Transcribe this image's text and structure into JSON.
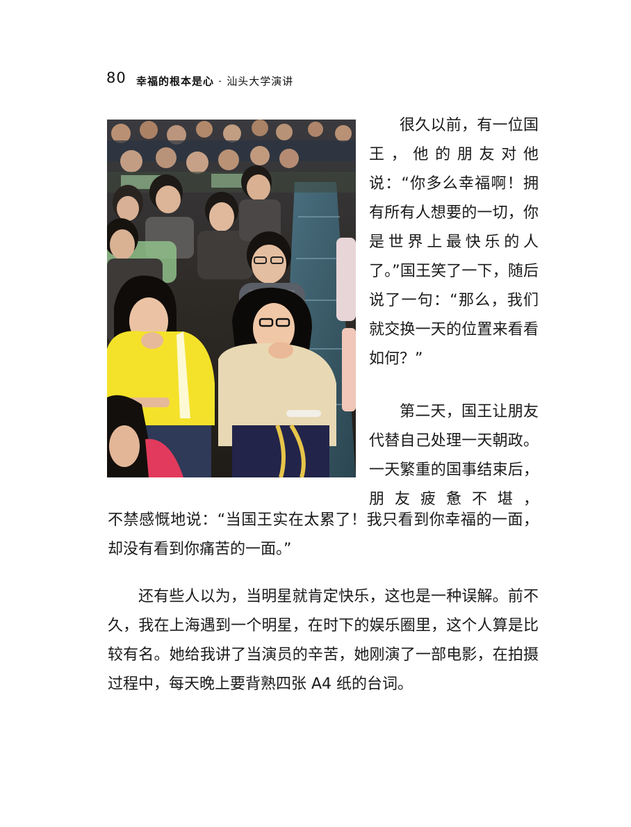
{
  "header": {
    "page_number": "80",
    "title": "幸福的根本是心",
    "separator": "·",
    "subtitle": "汕头大学演讲"
  },
  "photo": {
    "description_icon": "photo-students-in-lecture-hall"
  },
  "body": {
    "side_para1": "很久以前，有一位国王，他的朋友对他说：“你多么幸福啊！拥有所有人想要的一切，你是世界上最快乐的人了。”国王笑了一下，随后说了一句：“那么，我们就交换一天的位置来看看如何？”",
    "side_para2": "第二天，国王让朋友代替自己处理一天朝政。一天繁重的国事结束后，朋友疲惫不堪，",
    "full_para2_cont": "不禁感慨地说：“当国王实在太累了！我只看到你幸福的一面，却没有看到你痛苦的一面。”",
    "full_para3": "还有些人以为，当明星就肯定快乐，这也是一种误解。前不久，我在上海遇到一个明星，在时下的娱乐圈里，这个人算是比较有名。她给我讲了当演员的辛苦，她刚演了一部电影，在拍摄过程中，每天晚上要背熟四张 A4 纸的台词。"
  }
}
